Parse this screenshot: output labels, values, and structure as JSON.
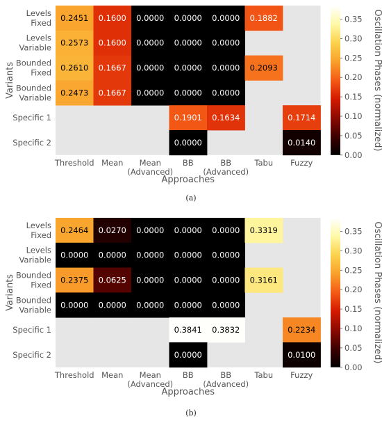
{
  "colorscale": {
    "stops": [
      "#000000",
      "#3d0000",
      "#8c0a00",
      "#d41a00",
      "#f45a16",
      "#f9a02b",
      "#fbd24c",
      "#fff9a6",
      "#ffffff"
    ],
    "na_color": "#e6e6e6",
    "text_light": "#ffffff",
    "text_dark": "#000000"
  },
  "chart_data": [
    {
      "type": "heatmap",
      "caption": "(a)",
      "xlabel": "Approaches",
      "ylabel": "Variants",
      "x_categories": [
        "Threshold",
        "Mean",
        "Mean\n(Advanced)",
        "BB",
        "BB\n(Advanced)",
        "Tabu",
        "Fuzzy"
      ],
      "y_categories": [
        "Levels\nFixed",
        "Levels\nVariable",
        "Bounded\nFixed",
        "Bounded\nVariable",
        "Specific 1",
        "Specific 2"
      ],
      "values": [
        [
          0.2451,
          0.16,
          0.0,
          0.0,
          0.0,
          0.1882,
          null
        ],
        [
          0.2573,
          0.16,
          0.0,
          0.0,
          0.0,
          null,
          null
        ],
        [
          0.261,
          0.1667,
          0.0,
          0.0,
          0.0,
          0.2093,
          null
        ],
        [
          0.2473,
          0.1667,
          0.0,
          0.0,
          0.0,
          null,
          null
        ],
        [
          null,
          null,
          null,
          0.1901,
          0.1634,
          null,
          0.1714
        ],
        [
          null,
          null,
          null,
          0.0,
          null,
          null,
          0.014
        ]
      ],
      "colorbar": {
        "label": "Oscillation Phases (normalized)",
        "range": [
          0,
          0.385
        ],
        "ticks": [
          "0.00",
          "0.05",
          "0.10",
          "0.15",
          "0.20",
          "0.25",
          "0.30",
          "0.35"
        ]
      }
    },
    {
      "type": "heatmap",
      "caption": "(b)",
      "xlabel": "Approaches",
      "ylabel": "Variants",
      "x_categories": [
        "Threshold",
        "Mean",
        "Mean\n(Advanced)",
        "BB",
        "BB\n(Advanced)",
        "Tabu",
        "Fuzzy"
      ],
      "y_categories": [
        "Levels\nFixed",
        "Levels\nVariable",
        "Bounded\nFixed",
        "Bounded\nVariable",
        "Specific 1",
        "Specific 2"
      ],
      "values": [
        [
          0.2464,
          0.027,
          0.0,
          0.0,
          0.0,
          0.3319,
          null
        ],
        [
          0.0,
          0.0,
          0.0,
          0.0,
          0.0,
          null,
          null
        ],
        [
          0.2375,
          0.0625,
          0.0,
          0.0,
          0.0,
          0.3161,
          null
        ],
        [
          0.0,
          0.0,
          0.0,
          0.0,
          0.0,
          null,
          null
        ],
        [
          null,
          null,
          null,
          0.3841,
          0.3832,
          null,
          0.2234
        ],
        [
          null,
          null,
          null,
          0.0,
          null,
          null,
          0.01
        ]
      ],
      "colorbar": {
        "label": "Oscillation Phases (normalized)",
        "range": [
          0,
          0.385
        ],
        "ticks": [
          "0.00",
          "0.05",
          "0.10",
          "0.15",
          "0.20",
          "0.25",
          "0.30",
          "0.35"
        ]
      }
    }
  ]
}
